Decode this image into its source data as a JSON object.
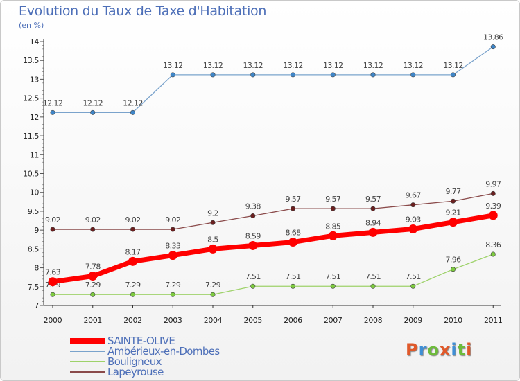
{
  "title": "Evolution du Taux de Taxe d'Habitation",
  "unit": "(en %)",
  "logo": {
    "text": "Proxiti",
    "letter_colors": [
      "#e0592a",
      "#3f8fd6",
      "#6dbb3b",
      "#e0592a",
      "#3f8fd6",
      "#6dbb3b",
      "#e0592a"
    ]
  },
  "chart_data": {
    "type": "line",
    "x": [
      "2000",
      "2001",
      "2002",
      "2003",
      "2004",
      "2005",
      "2006",
      "2007",
      "2008",
      "2009",
      "2010",
      "2011"
    ],
    "ylim": [
      7,
      14
    ],
    "yticks": [
      7,
      7.5,
      8,
      8.5,
      9,
      9.5,
      10,
      10.5,
      11,
      11.5,
      12,
      12.5,
      13,
      13.5,
      14
    ],
    "series": [
      {
        "name": "SAINTE-OLIVE",
        "color": "#ff0000",
        "marker": "#ff0000",
        "values": [
          7.63,
          7.78,
          8.17,
          8.33,
          8.5,
          8.59,
          8.68,
          8.85,
          8.94,
          9.03,
          9.21,
          9.39
        ],
        "labels": [
          "7.63",
          "7.78",
          "8.17",
          "8.33",
          "8.5",
          "8.59",
          "8.68",
          "8.85",
          "8.94",
          "9.03",
          "9.21",
          "9.39"
        ]
      },
      {
        "name": "Ambérieux-en-Dombes",
        "color": "#7aa3cc",
        "marker": "#3f86c8",
        "values": [
          12.12,
          12.12,
          12.12,
          13.12,
          13.12,
          13.12,
          13.12,
          13.12,
          13.12,
          13.12,
          13.12,
          13.86
        ],
        "labels": [
          "12.12",
          "12.12",
          "12.12",
          "13.12",
          "13.12",
          "13.12",
          "13.12",
          "13.12",
          "13.12",
          "13.12",
          "13.12",
          "13.86"
        ]
      },
      {
        "name": "Bouligneux",
        "color": "#9ed26a",
        "marker": "#7dcb40",
        "values": [
          7.29,
          7.29,
          7.29,
          7.29,
          7.29,
          7.51,
          7.51,
          7.51,
          7.51,
          7.51,
          7.96,
          8.36
        ],
        "labels": [
          "7.29",
          "7.29",
          "7.29",
          "7.29",
          "7.29",
          "7.51",
          "7.51",
          "7.51",
          "7.51",
          "7.51",
          "7.96",
          "8.36"
        ]
      },
      {
        "name": "Lapeyrouse",
        "color": "#8a4a4a",
        "marker": "#6b1f1f",
        "values": [
          9.02,
          9.02,
          9.02,
          9.02,
          9.2,
          9.38,
          9.57,
          9.57,
          9.57,
          9.67,
          9.77,
          9.97
        ],
        "labels": [
          "9.02",
          "9.02",
          "9.02",
          "9.02",
          "9.2",
          "9.38",
          "9.57",
          "9.57",
          "9.57",
          "9.67",
          "9.77",
          "9.97"
        ]
      }
    ],
    "legend": "bottom-left",
    "grid": false
  }
}
